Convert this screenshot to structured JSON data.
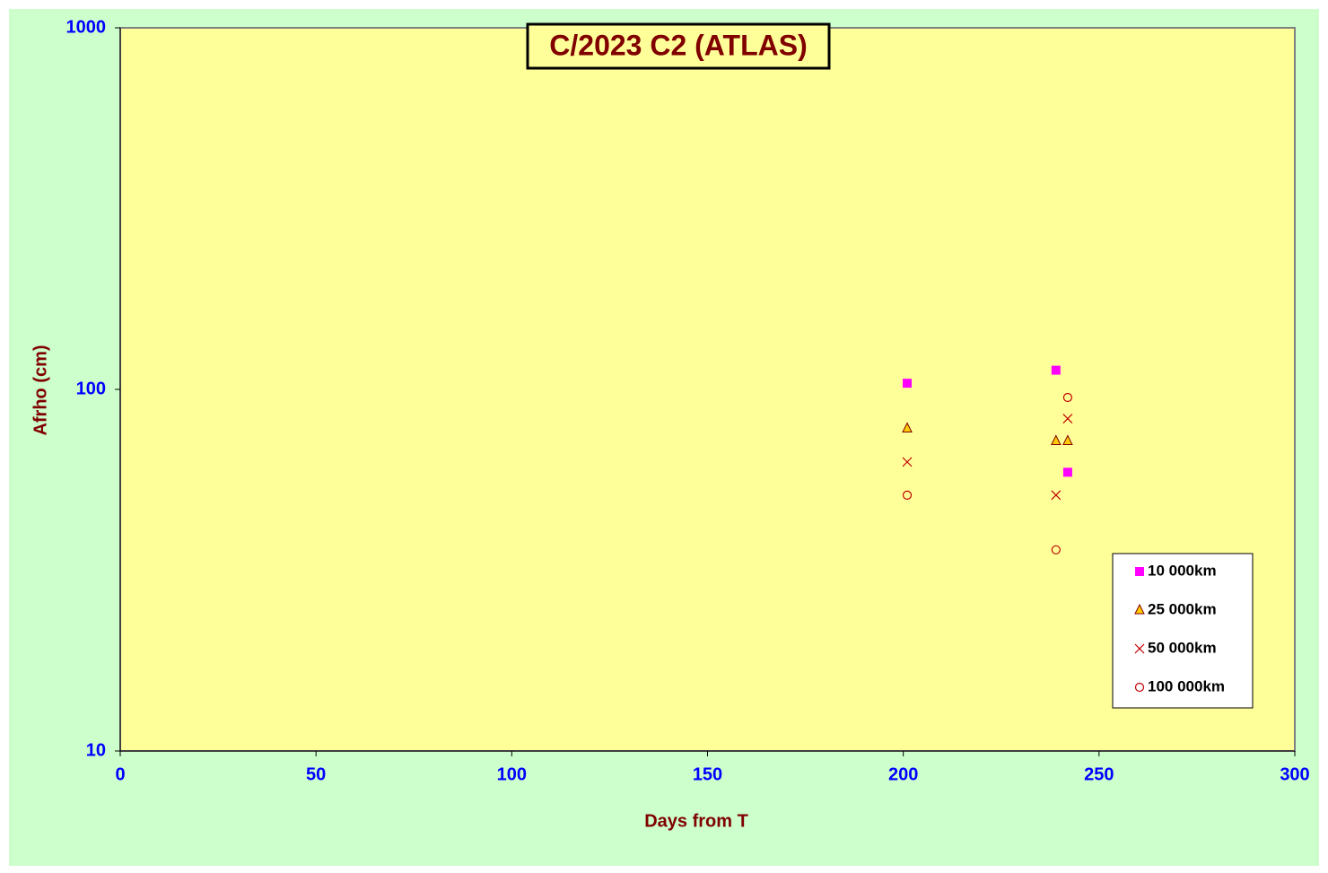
{
  "chart_data": {
    "type": "scatter",
    "title": "C/2023 C2 (ATLAS)",
    "x_label": "Days from T",
    "y_label": "Afrho (cm)",
    "xlim": [
      0,
      300
    ],
    "xticks": [
      0,
      50,
      100,
      150,
      200,
      250,
      300
    ],
    "ylim": [
      10,
      1000
    ],
    "yticks": [
      10,
      100,
      1000
    ],
    "y_scale": "log",
    "legend": "lower right",
    "series": [
      {
        "name": "10 000km",
        "marker": "square",
        "color": "#ff00ff",
        "x": [
          201,
          239,
          242
        ],
        "values": [
          104,
          113,
          59
        ]
      },
      {
        "name": "25 000km",
        "marker": "triangle",
        "color": "#ffcc00",
        "x": [
          201,
          239,
          242
        ],
        "values": [
          78,
          72,
          72
        ]
      },
      {
        "name": "50 000km",
        "marker": "cross",
        "color": "#c00000",
        "x": [
          201,
          239,
          242
        ],
        "values": [
          63,
          51,
          83
        ]
      },
      {
        "name": "100 000km",
        "marker": "circle",
        "color": "#c00000",
        "x": [
          201,
          239,
          242
        ],
        "values": [
          51,
          36,
          95
        ]
      }
    ]
  }
}
